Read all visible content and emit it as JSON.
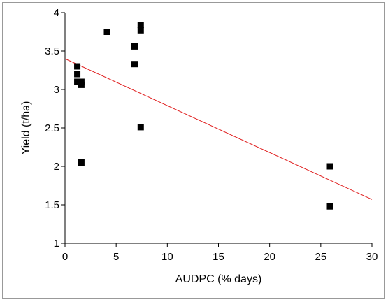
{
  "chart_data": {
    "type": "scatter",
    "xlabel": "AUDPC (% days)",
    "ylabel": "Yield (t/ha)",
    "xlim": [
      0,
      30
    ],
    "ylim": [
      1,
      4
    ],
    "x_ticks": [
      "0",
      "5",
      "10",
      "15",
      "20",
      "25",
      "30"
    ],
    "y_ticks": [
      "1",
      "1.5",
      "2",
      "2.5",
      "3",
      "3.5",
      "4"
    ],
    "grid": false,
    "legend": "none",
    "series": [
      {
        "points": [
          {
            "x": 1.2,
            "y": 3.3
          },
          {
            "x": 1.2,
            "y": 3.2
          },
          {
            "x": 1.2,
            "y": 3.1
          },
          {
            "x": 1.6,
            "y": 3.1
          },
          {
            "x": 1.6,
            "y": 3.06
          },
          {
            "x": 1.6,
            "y": 2.05
          },
          {
            "x": 4.1,
            "y": 3.75
          },
          {
            "x": 6.8,
            "y": 3.56
          },
          {
            "x": 6.8,
            "y": 3.33
          },
          {
            "x": 7.4,
            "y": 3.84
          },
          {
            "x": 7.4,
            "y": 3.77
          },
          {
            "x": 7.4,
            "y": 2.51
          },
          {
            "x": 25.9,
            "y": 2.0
          },
          {
            "x": 25.9,
            "y": 1.48
          }
        ]
      }
    ],
    "trendline": {
      "x": [
        0,
        30
      ],
      "y": [
        3.4,
        1.57
      ]
    },
    "colors": {
      "marker": "#000000",
      "trendline": "#e02020",
      "axis": "#000000"
    }
  }
}
